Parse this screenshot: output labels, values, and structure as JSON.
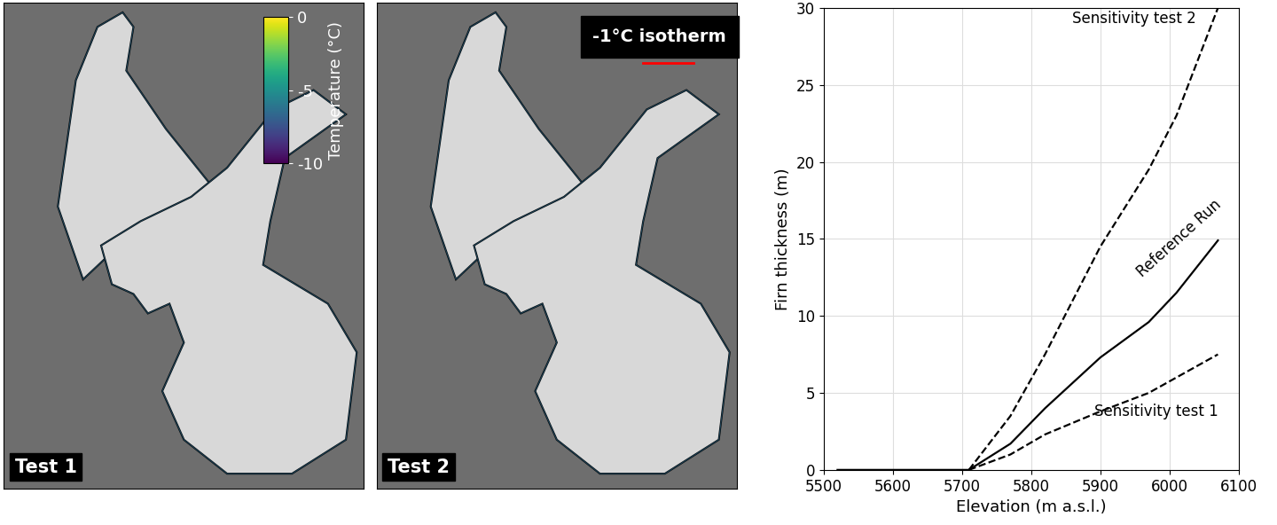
{
  "chart_data": [
    {
      "type": "map",
      "label": "Test 1",
      "colorbar": {
        "label": "Temperature (°C)",
        "range": [
          -10,
          0
        ],
        "ticks": [
          0,
          -5,
          -10
        ]
      }
    },
    {
      "type": "map",
      "label": "Test 2",
      "legend_entry": "-1°C isotherm",
      "color": "#ff0000"
    },
    {
      "type": "line",
      "xlabel": "Elevation (m a.s.l.)",
      "ylabel": "Firn thickness (m)",
      "xlim": [
        5500,
        6100
      ],
      "xticks": [
        5500,
        5600,
        5700,
        5800,
        5900,
        6000,
        6100
      ],
      "ylim": [
        0,
        30
      ],
      "yticks": [
        0,
        5,
        10,
        15,
        20,
        25,
        30
      ],
      "grid": true,
      "series": [
        {
          "name": "Sensitivity test 2",
          "color": "#000000",
          "line_style": "dashed",
          "x": [
            5710,
            5770,
            5820,
            5900,
            5970,
            6010,
            6070
          ],
          "values": [
            0,
            3.5,
            7.5,
            14.5,
            19.5,
            23,
            30
          ]
        },
        {
          "name": "Reference Run",
          "color": "#000000",
          "line_style": "solid",
          "x": [
            5520,
            5600,
            5700,
            5710,
            5770,
            5820,
            5900,
            5970,
            6010,
            6070
          ],
          "values": [
            0,
            0,
            0,
            0,
            1.7,
            4,
            7.3,
            9.6,
            11.5,
            14.9
          ]
        },
        {
          "name": "Sensitivity test 1",
          "color": "#000000",
          "line_style": "dashed",
          "x": [
            5710,
            5770,
            5820,
            5900,
            5970,
            6010,
            6070
          ],
          "values": [
            0,
            1,
            2.3,
            3.8,
            5,
            6,
            7.5
          ]
        }
      ]
    }
  ]
}
